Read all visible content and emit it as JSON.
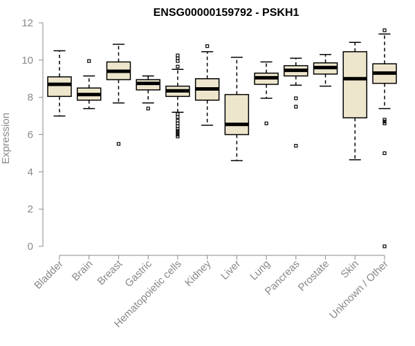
{
  "chart_data": {
    "type": "boxplot",
    "title": "ENSG00000159792 - PSKH1",
    "xlabel": "",
    "ylabel": "Expression",
    "ylim": [
      0,
      12
    ],
    "yticks": [
      0,
      2,
      4,
      6,
      8,
      10,
      12
    ],
    "box_fill": "#ede6cc",
    "categories": [
      "Bladder",
      "Brain",
      "Breast",
      "Gastric",
      "Hematopoietic cells",
      "Kidney",
      "Liver",
      "Lung",
      "Pancreas",
      "Prostate",
      "Skin",
      "Unknown / Other"
    ],
    "boxes": [
      {
        "whislo": 7.0,
        "q1": 8.05,
        "med": 8.7,
        "q3": 9.1,
        "whishi": 10.5,
        "fliers": []
      },
      {
        "whislo": 7.4,
        "q1": 7.85,
        "med": 8.15,
        "q3": 8.5,
        "whishi": 9.15,
        "fliers": [
          9.95
        ]
      },
      {
        "whislo": 7.7,
        "q1": 8.95,
        "med": 9.4,
        "q3": 9.9,
        "whishi": 10.85,
        "fliers": [
          5.5
        ]
      },
      {
        "whislo": 7.7,
        "q1": 8.4,
        "med": 8.75,
        "q3": 8.95,
        "whishi": 9.15,
        "fliers": [
          7.4
        ]
      },
      {
        "whislo": 7.2,
        "q1": 8.05,
        "med": 8.35,
        "q3": 8.6,
        "whishi": 9.5,
        "fliers": [
          10.25,
          10.1,
          9.95,
          9.65,
          7.1,
          6.95,
          6.75,
          6.6,
          6.45,
          6.3,
          6.2,
          6.1,
          6.0,
          5.9
        ]
      },
      {
        "whislo": 6.5,
        "q1": 7.85,
        "med": 8.45,
        "q3": 9.0,
        "whishi": 10.45,
        "fliers": [
          10.75
        ]
      },
      {
        "whislo": 4.6,
        "q1": 6.0,
        "med": 6.55,
        "q3": 8.15,
        "whishi": 10.15,
        "fliers": []
      },
      {
        "whislo": 7.95,
        "q1": 8.7,
        "med": 9.05,
        "q3": 9.3,
        "whishi": 9.9,
        "fliers": [
          6.6
        ]
      },
      {
        "whislo": 8.65,
        "q1": 9.15,
        "med": 9.45,
        "q3": 9.7,
        "whishi": 10.1,
        "fliers": [
          7.95,
          7.5,
          5.4
        ]
      },
      {
        "whislo": 8.6,
        "q1": 9.25,
        "med": 9.6,
        "q3": 9.85,
        "whishi": 10.3,
        "fliers": []
      },
      {
        "whislo": 4.65,
        "q1": 6.9,
        "med": 9.0,
        "q3": 10.45,
        "whishi": 10.95,
        "fliers": []
      },
      {
        "whislo": 7.4,
        "q1": 8.75,
        "med": 9.3,
        "q3": 9.8,
        "whishi": 11.4,
        "fliers": [
          11.6,
          6.8,
          6.7,
          6.6,
          5.0,
          0.0
        ]
      }
    ]
  }
}
